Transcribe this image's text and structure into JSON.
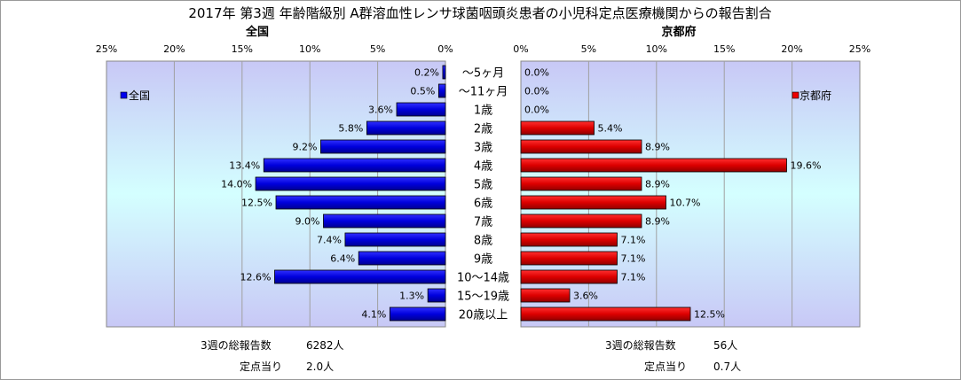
{
  "title": "2017年 第3週 年齢階級別 A群溶血性レンサ球菌咽頭炎患者の小児科定点医療機関からの報告割合",
  "categories": [
    "〜5ヶ月",
    "〜11ヶ月",
    "1歳",
    "2歳",
    "3歳",
    "4歳",
    "5歳",
    "6歳",
    "7歳",
    "8歳",
    "9歳",
    "10〜14歳",
    "15〜19歳",
    "20歳以上"
  ],
  "left_panel": {
    "label": "全国",
    "legend": "全国",
    "color": "#0000EE",
    "ticks": [
      "25%",
      "20%",
      "15%",
      "10%",
      "5%",
      "0%"
    ],
    "values": [
      0.2,
      0.5,
      3.6,
      5.8,
      9.2,
      13.4,
      14.0,
      12.5,
      9.0,
      7.4,
      6.4,
      12.6,
      1.3,
      4.1
    ],
    "value_labels": [
      "0.2%",
      "0.5%",
      "3.6%",
      "5.8%",
      "9.2%",
      "13.4%",
      "14.0%",
      "12.5%",
      "9.0%",
      "7.4%",
      "6.4%",
      "12.6%",
      "1.3%",
      "4.1%"
    ],
    "total_label": "3週の総報告数",
    "total_value": "6282人",
    "per_label": "定点当り",
    "per_value": "2.0人"
  },
  "right_panel": {
    "label": "京都府",
    "legend": "京都府",
    "color": "#EE0000",
    "ticks": [
      "0%",
      "5%",
      "10%",
      "15%",
      "20%",
      "25%"
    ],
    "values": [
      0.0,
      0.0,
      0.0,
      5.4,
      8.9,
      19.6,
      8.9,
      10.7,
      8.9,
      7.1,
      7.1,
      7.1,
      3.6,
      12.5
    ],
    "value_labels": [
      "0.0%",
      "0.0%",
      "0.0%",
      "5.4%",
      "8.9%",
      "19.6%",
      "8.9%",
      "10.7%",
      "8.9%",
      "7.1%",
      "7.1%",
      "7.1%",
      "3.6%",
      "12.5%"
    ],
    "total_label": "3週の総報告数",
    "total_value": "56人",
    "per_label": "定点当り",
    "per_value": "0.7人"
  },
  "chart_data": [
    {
      "type": "bar",
      "title": "全国",
      "categories": [
        "〜5ヶ月",
        "〜11ヶ月",
        "1歳",
        "2歳",
        "3歳",
        "4歳",
        "5歳",
        "6歳",
        "7歳",
        "8歳",
        "9歳",
        "10〜14歳",
        "15〜19歳",
        "20歳以上"
      ],
      "series": [
        {
          "name": "全国",
          "values": [
            0.2,
            0.5,
            3.6,
            5.8,
            9.2,
            13.4,
            14.0,
            12.5,
            9.0,
            7.4,
            6.4,
            12.6,
            1.3,
            4.1
          ]
        }
      ],
      "xlim": [
        25,
        0
      ],
      "orientation": "horizontal-reversed",
      "legend": "left",
      "grid": true
    },
    {
      "type": "bar",
      "title": "京都府",
      "categories": [
        "〜5ヶ月",
        "〜11ヶ月",
        "1歳",
        "2歳",
        "3歳",
        "4歳",
        "5歳",
        "6歳",
        "7歳",
        "8歳",
        "9歳",
        "10〜14歳",
        "15〜19歳",
        "20歳以上"
      ],
      "series": [
        {
          "name": "京都府",
          "values": [
            0.0,
            0.0,
            0.0,
            5.4,
            8.9,
            19.6,
            8.9,
            10.7,
            8.9,
            7.1,
            7.1,
            7.1,
            3.6,
            12.5
          ]
        }
      ],
      "xlim": [
        0,
        25
      ],
      "orientation": "horizontal",
      "legend": "right",
      "grid": true
    }
  ]
}
